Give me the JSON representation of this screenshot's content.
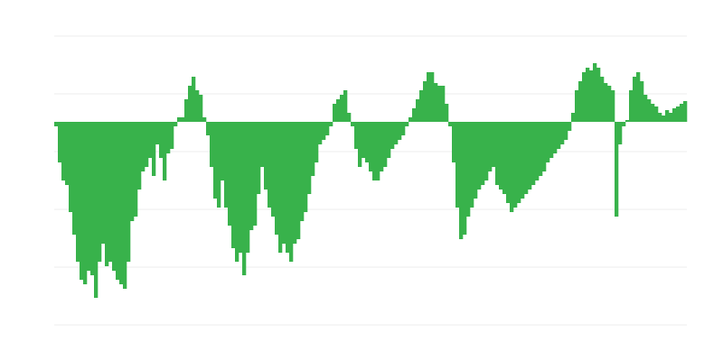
{
  "chart_data": {
    "type": "bar",
    "title": "",
    "xlabel": "",
    "ylabel": "",
    "ylim": [
      -22.5,
      9.5
    ],
    "grid": true,
    "legend": "none",
    "bar_color": "#38b24b",
    "grid_color": "#ececec",
    "values": [
      -0.5,
      -4.5,
      -6.5,
      -7,
      -10,
      -12.5,
      -15.5,
      -17.5,
      -18,
      -16.5,
      -17,
      -19.5,
      -15.5,
      -13.5,
      -16,
      -15.5,
      -16.5,
      -17.5,
      -18,
      -18.5,
      -15.5,
      -11,
      -10.5,
      -7.5,
      -5.5,
      -5,
      -4,
      -6,
      -2.5,
      -4,
      -6.5,
      -3.5,
      -3,
      -0.5,
      0.5,
      0.5,
      2.5,
      4,
      5,
      3.5,
      3,
      0.5,
      -1.5,
      -5,
      -8.5,
      -9.5,
      -6.5,
      -9.5,
      -11.5,
      -14,
      -15.5,
      -14.5,
      -17,
      -14.5,
      -12,
      -11.5,
      -8,
      -5,
      -7.5,
      -9.5,
      -10.5,
      -12.5,
      -14.5,
      -13.5,
      -14.5,
      -15.5,
      -13.5,
      -13,
      -11,
      -10,
      -8,
      -6,
      -4.5,
      -2.5,
      -2,
      -1.5,
      -0.5,
      2,
      2.5,
      3,
      3.5,
      1,
      -0.5,
      -3,
      -5,
      -4,
      -4.5,
      -5.5,
      -6.5,
      -6.5,
      -5.5,
      -5,
      -4,
      -3,
      -2.5,
      -2,
      -1.5,
      -0.5,
      0.5,
      1.5,
      2.5,
      3.5,
      4.5,
      5.5,
      5.5,
      4.3,
      4,
      4,
      2,
      -0.5,
      -4.5,
      -9.5,
      -13,
      -12.5,
      -10.5,
      -9.5,
      -8.5,
      -7.5,
      -7,
      -6.5,
      -5.5,
      -5,
      -7,
      -7.5,
      -8,
      -9,
      -10,
      -9.5,
      -9,
      -8.5,
      -8,
      -7.5,
      -7,
      -6.5,
      -6,
      -5.5,
      -4.5,
      -4,
      -3.5,
      -3,
      -2.5,
      -2,
      -1,
      1,
      3.5,
      4.5,
      5.5,
      6,
      5.7,
      6.5,
      6,
      5,
      4.3,
      4,
      3.5,
      -10.5,
      -2.5,
      -0.5,
      0.2,
      3.5,
      5,
      5.5,
      4.5,
      3,
      2.5,
      2,
      1.7,
      1,
      0.7,
      1.3,
      1,
      1.5,
      1.7,
      2,
      2.3
    ]
  }
}
